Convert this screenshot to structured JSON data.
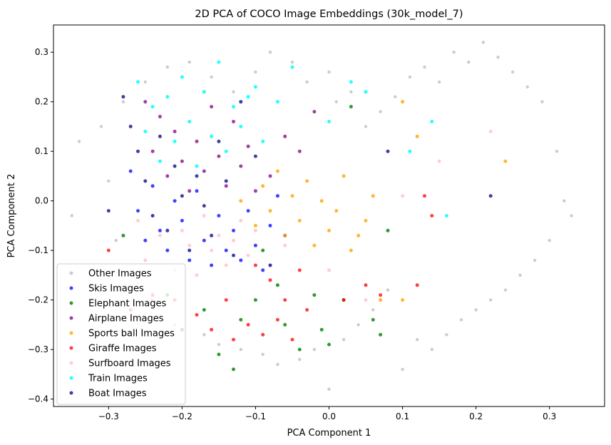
{
  "chart_data": {
    "type": "scatter",
    "title": "2D PCA of COCO Image Embeddings (30k_model_7)",
    "xlabel": "PCA Component 1",
    "ylabel": "PCA Component 2",
    "xlim": [
      -0.375,
      0.375
    ],
    "ylim": [
      -0.415,
      0.355
    ],
    "xticks": [
      "−0.3",
      "−0.2",
      "−0.1",
      "0.0",
      "0.1",
      "0.2",
      "0.3"
    ],
    "xtick_values": [
      -0.3,
      -0.2,
      -0.1,
      0.0,
      0.1,
      0.2,
      0.3
    ],
    "yticks": [
      "−0.4",
      "−0.3",
      "−0.2",
      "−0.1",
      "0.0",
      "0.1",
      "0.2",
      "0.3"
    ],
    "ytick_values": [
      -0.4,
      -0.3,
      -0.2,
      -0.1,
      0.0,
      0.1,
      0.2,
      0.3
    ],
    "grid": false,
    "legend_position": "bottom-left",
    "series": [
      {
        "name": "Other Images",
        "color": "#808080",
        "opacity": 0.4,
        "points": [
          [
            -0.35,
            -0.03
          ],
          [
            -0.34,
            0.12
          ],
          [
            -0.31,
            0.15
          ],
          [
            -0.3,
            0.04
          ],
          [
            -0.29,
            -0.08
          ],
          [
            -0.28,
            0.2
          ],
          [
            -0.27,
            -0.15
          ],
          [
            -0.25,
            0.24
          ],
          [
            -0.24,
            -0.2
          ],
          [
            -0.22,
            0.27
          ],
          [
            -0.21,
            -0.25
          ],
          [
            -0.19,
            0.28
          ],
          [
            -0.17,
            -0.27
          ],
          [
            -0.16,
            0.25
          ],
          [
            -0.15,
            -0.29
          ],
          [
            -0.13,
            0.22
          ],
          [
            -0.12,
            -0.3
          ],
          [
            -0.1,
            0.26
          ],
          [
            -0.09,
            -0.31
          ],
          [
            -0.08,
            0.3
          ],
          [
            -0.07,
            -0.33
          ],
          [
            -0.05,
            0.28
          ],
          [
            -0.04,
            -0.32
          ],
          [
            -0.03,
            0.24
          ],
          [
            -0.02,
            -0.3
          ],
          [
            0.0,
            0.26
          ],
          [
            0.0,
            -0.38
          ],
          [
            0.01,
            0.2
          ],
          [
            0.02,
            -0.28
          ],
          [
            0.03,
            0.22
          ],
          [
            0.04,
            -0.25
          ],
          [
            0.05,
            0.15
          ],
          [
            0.06,
            -0.22
          ],
          [
            0.07,
            0.18
          ],
          [
            0.08,
            -0.18
          ],
          [
            0.09,
            0.21
          ],
          [
            0.1,
            -0.34
          ],
          [
            0.11,
            0.25
          ],
          [
            0.12,
            -0.28
          ],
          [
            0.13,
            0.27
          ],
          [
            0.14,
            -0.3
          ],
          [
            0.15,
            0.24
          ],
          [
            0.16,
            -0.27
          ],
          [
            0.17,
            0.3
          ],
          [
            0.18,
            -0.24
          ],
          [
            0.19,
            0.28
          ],
          [
            0.2,
            -0.22
          ],
          [
            0.21,
            0.32
          ],
          [
            0.22,
            -0.2
          ],
          [
            0.23,
            0.29
          ],
          [
            0.24,
            -0.18
          ],
          [
            0.25,
            0.26
          ],
          [
            0.26,
            -0.15
          ],
          [
            0.27,
            0.23
          ],
          [
            0.28,
            -0.12
          ],
          [
            0.29,
            0.2
          ],
          [
            0.3,
            -0.08
          ],
          [
            0.31,
            0.1
          ],
          [
            0.32,
            0.0
          ],
          [
            0.33,
            -0.03
          ]
        ]
      },
      {
        "name": "Skis Images",
        "color": "#0000ff",
        "opacity": 0.75,
        "points": [
          [
            -0.27,
            0.06
          ],
          [
            -0.26,
            -0.02
          ],
          [
            -0.25,
            -0.08
          ],
          [
            -0.24,
            0.03
          ],
          [
            -0.23,
            -0.06
          ],
          [
            -0.22,
            -0.1
          ],
          [
            -0.21,
            0.0
          ],
          [
            -0.2,
            -0.04
          ],
          [
            -0.19,
            -0.12
          ],
          [
            -0.18,
            0.02
          ],
          [
            -0.17,
            -0.08
          ],
          [
            -0.16,
            -0.13
          ],
          [
            -0.15,
            -0.03
          ],
          [
            -0.14,
            -0.1
          ],
          [
            -0.13,
            -0.06
          ],
          [
            -0.12,
            -0.12
          ],
          [
            -0.11,
            -0.02
          ],
          [
            -0.1,
            -0.09
          ],
          [
            -0.09,
            -0.14
          ],
          [
            -0.08,
            -0.05
          ],
          [
            -0.07,
            0.01
          ],
          [
            -0.06,
            -0.07
          ]
        ]
      },
      {
        "name": "Elephant Images",
        "color": "#008000",
        "opacity": 0.8,
        "points": [
          [
            -0.28,
            -0.07
          ],
          [
            -0.22,
            -0.19
          ],
          [
            -0.2,
            -0.26
          ],
          [
            -0.17,
            -0.22
          ],
          [
            -0.15,
            -0.31
          ],
          [
            -0.13,
            -0.34
          ],
          [
            -0.12,
            -0.24
          ],
          [
            -0.1,
            -0.2
          ],
          [
            -0.09,
            -0.1
          ],
          [
            -0.07,
            -0.17
          ],
          [
            -0.06,
            -0.25
          ],
          [
            -0.04,
            -0.3
          ],
          [
            -0.02,
            -0.19
          ],
          [
            -0.01,
            -0.26
          ],
          [
            0.0,
            -0.29
          ],
          [
            0.02,
            -0.2
          ],
          [
            0.03,
            0.19
          ],
          [
            0.06,
            -0.24
          ],
          [
            0.07,
            -0.27
          ],
          [
            0.08,
            -0.06
          ]
        ]
      },
      {
        "name": "Airplane Images",
        "color": "#800080",
        "opacity": 0.75,
        "points": [
          [
            -0.25,
            0.2
          ],
          [
            -0.24,
            0.1
          ],
          [
            -0.23,
            0.17
          ],
          [
            -0.22,
            0.05
          ],
          [
            -0.21,
            0.14
          ],
          [
            -0.2,
            0.08
          ],
          [
            -0.19,
            0.02
          ],
          [
            -0.18,
            0.12
          ],
          [
            -0.17,
            0.06
          ],
          [
            -0.16,
            0.19
          ],
          [
            -0.15,
            0.09
          ],
          [
            -0.14,
            0.03
          ],
          [
            -0.13,
            0.16
          ],
          [
            -0.12,
            0.07
          ],
          [
            -0.11,
            0.11
          ],
          [
            -0.1,
            0.02
          ],
          [
            -0.08,
            0.05
          ],
          [
            -0.06,
            0.13
          ],
          [
            -0.04,
            0.1
          ],
          [
            -0.02,
            0.18
          ]
        ]
      },
      {
        "name": "Sports ball Images",
        "color": "#ffa500",
        "opacity": 0.8,
        "points": [
          [
            -0.12,
            0.0
          ],
          [
            -0.1,
            -0.05
          ],
          [
            -0.09,
            0.03
          ],
          [
            -0.08,
            -0.02
          ],
          [
            -0.07,
            0.06
          ],
          [
            -0.06,
            -0.07
          ],
          [
            -0.05,
            0.01
          ],
          [
            -0.04,
            -0.04
          ],
          [
            -0.03,
            0.04
          ],
          [
            -0.02,
            -0.09
          ],
          [
            -0.01,
            0.0
          ],
          [
            0.0,
            -0.06
          ],
          [
            0.01,
            -0.02
          ],
          [
            0.02,
            0.05
          ],
          [
            0.03,
            -0.1
          ],
          [
            0.04,
            -0.07
          ],
          [
            0.05,
            -0.04
          ],
          [
            0.06,
            0.01
          ],
          [
            0.07,
            -0.2
          ],
          [
            0.1,
            -0.2
          ],
          [
            0.1,
            0.2
          ],
          [
            0.12,
            0.13
          ],
          [
            0.24,
            0.08
          ]
        ]
      },
      {
        "name": "Giraffe Images",
        "color": "#ff0000",
        "opacity": 0.75,
        "points": [
          [
            -0.3,
            -0.1
          ],
          [
            -0.27,
            -0.22
          ],
          [
            -0.24,
            -0.19
          ],
          [
            -0.21,
            -0.2
          ],
          [
            -0.18,
            -0.23
          ],
          [
            -0.16,
            -0.26
          ],
          [
            -0.14,
            -0.2
          ],
          [
            -0.13,
            -0.28
          ],
          [
            -0.11,
            -0.25
          ],
          [
            -0.1,
            -0.13
          ],
          [
            -0.09,
            -0.27
          ],
          [
            -0.08,
            -0.16
          ],
          [
            -0.07,
            -0.24
          ],
          [
            -0.06,
            -0.2
          ],
          [
            -0.05,
            -0.28
          ],
          [
            -0.04,
            -0.14
          ],
          [
            -0.03,
            -0.22
          ],
          [
            0.02,
            -0.2
          ],
          [
            0.05,
            -0.17
          ],
          [
            0.07,
            -0.19
          ],
          [
            0.12,
            -0.17
          ],
          [
            0.13,
            0.01
          ],
          [
            0.14,
            -0.03
          ]
        ]
      },
      {
        "name": "Surfboard Images",
        "color": "#ffc0cb",
        "opacity": 0.8,
        "points": [
          [
            -0.26,
            -0.04
          ],
          [
            -0.25,
            -0.12
          ],
          [
            -0.23,
            -0.07
          ],
          [
            -0.21,
            -0.14
          ],
          [
            -0.2,
            -0.06
          ],
          [
            -0.19,
            -0.09
          ],
          [
            -0.18,
            -0.15
          ],
          [
            -0.17,
            -0.03
          ],
          [
            -0.16,
            -0.1
          ],
          [
            -0.15,
            -0.07
          ],
          [
            -0.14,
            -0.13
          ],
          [
            -0.13,
            -0.08
          ],
          [
            -0.12,
            -0.04
          ],
          [
            -0.11,
            -0.11
          ],
          [
            -0.1,
            -0.06
          ],
          [
            -0.08,
            -0.13
          ],
          [
            -0.06,
            -0.09
          ],
          [
            0.0,
            -0.14
          ],
          [
            0.05,
            -0.2
          ],
          [
            0.1,
            0.01
          ],
          [
            0.15,
            0.08
          ],
          [
            0.22,
            0.14
          ]
        ]
      },
      {
        "name": "Train Images",
        "color": "#00ffff",
        "opacity": 0.85,
        "points": [
          [
            -0.26,
            0.24
          ],
          [
            -0.25,
            0.14
          ],
          [
            -0.24,
            0.19
          ],
          [
            -0.23,
            0.08
          ],
          [
            -0.22,
            0.21
          ],
          [
            -0.21,
            0.12
          ],
          [
            -0.2,
            0.25
          ],
          [
            -0.19,
            0.16
          ],
          [
            -0.18,
            0.07
          ],
          [
            -0.17,
            0.22
          ],
          [
            -0.16,
            0.13
          ],
          [
            -0.15,
            0.28
          ],
          [
            -0.14,
            0.1
          ],
          [
            -0.13,
            0.19
          ],
          [
            -0.12,
            0.15
          ],
          [
            -0.11,
            0.21
          ],
          [
            -0.1,
            0.23
          ],
          [
            -0.09,
            0.12
          ],
          [
            -0.07,
            0.2
          ],
          [
            -0.05,
            0.27
          ],
          [
            0.0,
            0.16
          ],
          [
            0.03,
            0.24
          ],
          [
            0.05,
            0.22
          ],
          [
            0.11,
            0.1
          ],
          [
            0.14,
            0.16
          ],
          [
            0.16,
            -0.03
          ]
        ]
      },
      {
        "name": "Boat Images",
        "color": "#000080",
        "opacity": 0.75,
        "points": [
          [
            -0.3,
            -0.02
          ],
          [
            -0.28,
            0.21
          ],
          [
            -0.27,
            0.15
          ],
          [
            -0.26,
            0.1
          ],
          [
            -0.25,
            0.04
          ],
          [
            -0.24,
            -0.03
          ],
          [
            -0.23,
            0.13
          ],
          [
            -0.22,
            -0.06
          ],
          [
            -0.21,
            0.07
          ],
          [
            -0.2,
            0.01
          ],
          [
            -0.19,
            -0.1
          ],
          [
            -0.18,
            0.05
          ],
          [
            -0.17,
            -0.01
          ],
          [
            -0.16,
            -0.07
          ],
          [
            -0.15,
            0.12
          ],
          [
            -0.14,
            0.04
          ],
          [
            -0.13,
            -0.11
          ],
          [
            -0.12,
            0.2
          ],
          [
            -0.1,
            0.09
          ],
          [
            -0.08,
            -0.13
          ],
          [
            0.08,
            0.1
          ],
          [
            0.22,
            0.01
          ]
        ]
      }
    ]
  }
}
